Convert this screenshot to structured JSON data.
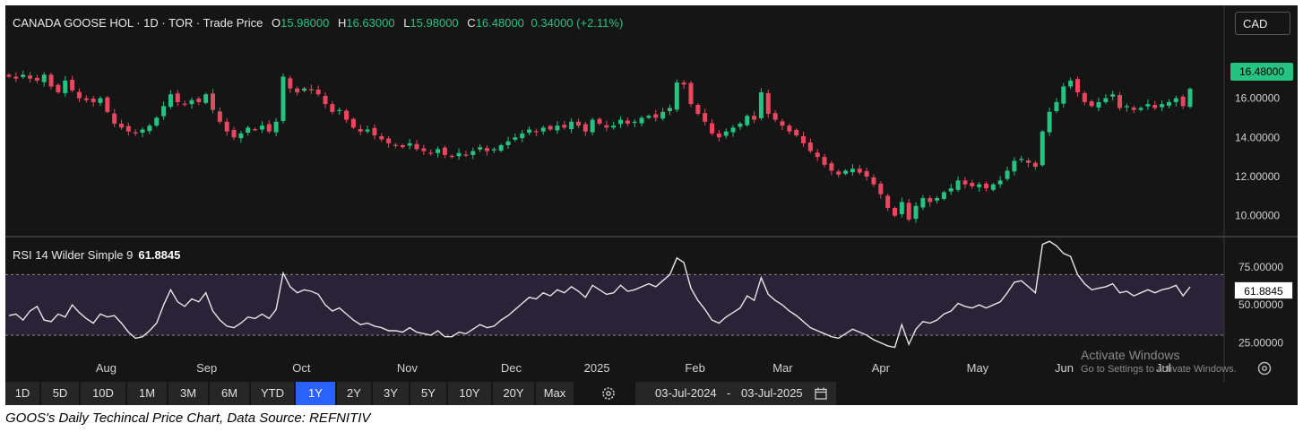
{
  "legend": {
    "name": "CANADA GOOSE HOL · 1D · TOR · Trade Price",
    "open_label": "O",
    "open": "15.98000",
    "high_label": "H",
    "high": "16.63000",
    "low_label": "L",
    "low": "15.98000",
    "close_label": "C",
    "close": "16.48000",
    "change": "0.34000 (+2.11%)"
  },
  "currency": "CAD",
  "last_price_tag": "16.48000",
  "rsi_legend": {
    "label": "RSI 14 Wilder Simple 9",
    "value": "61.8845"
  },
  "rsi_tag": "61.8845",
  "watermark": {
    "line1": "Activate Windows",
    "line2": "Go to Settings to activate Windows."
  },
  "ranges": [
    "1D",
    "5D",
    "10D",
    "1M",
    "3M",
    "6M",
    "YTD",
    "1Y",
    "2Y",
    "3Y",
    "5Y",
    "10Y",
    "20Y",
    "Max"
  ],
  "active_range": "1Y",
  "date_range": {
    "from": "03-Jul-2024",
    "sep": "-",
    "to": "03-Jul-2025"
  },
  "caption": "GOOS's Daily Techincal Price Chart, Data Source: REFNITIV",
  "colors": {
    "up": "#26c281",
    "down": "#e8475f",
    "background": "#151515",
    "rsi_line": "#e6e6e6",
    "rsi_band": "#2a2236"
  },
  "chart_data": [
    {
      "type": "candlestick",
      "title": "CANADA GOOSE HOL · 1D · TOR · Trade Price",
      "x_ticks": [
        "Aug",
        "Sep",
        "Oct",
        "Nov",
        "Dec",
        "2025",
        "Feb",
        "Mar",
        "Apr",
        "May",
        "Jun",
        "Jul"
      ],
      "y_ticks": [
        "16.00000",
        "14.00000",
        "12.00000",
        "10.00000"
      ],
      "ylim": [
        9.3,
        19.0
      ],
      "x_range": [
        "03-Jul-2024",
        "03-Jul-2025"
      ],
      "closes": [
        17.1,
        17.0,
        17.2,
        17.0,
        16.9,
        17.2,
        16.6,
        16.3,
        16.9,
        16.4,
        16.0,
        15.9,
        15.8,
        16.0,
        15.3,
        14.7,
        14.5,
        14.3,
        14.2,
        14.4,
        14.6,
        15.0,
        15.6,
        16.2,
        15.8,
        15.7,
        15.9,
        15.8,
        16.2,
        15.4,
        14.8,
        14.3,
        14.0,
        14.2,
        14.5,
        14.4,
        14.6,
        14.3,
        14.8,
        17.1,
        16.5,
        16.3,
        16.5,
        16.4,
        16.2,
        15.7,
        15.3,
        15.4,
        14.9,
        14.5,
        14.3,
        14.4,
        14.1,
        13.9,
        13.7,
        13.6,
        13.5,
        13.7,
        13.4,
        13.3,
        13.2,
        13.4,
        13.1,
        13.0,
        13.2,
        13.1,
        13.3,
        13.5,
        13.3,
        13.4,
        13.6,
        13.8,
        14.0,
        14.2,
        14.4,
        14.3,
        14.5,
        14.4,
        14.6,
        14.5,
        14.8,
        14.6,
        14.3,
        14.9,
        14.7,
        14.5,
        14.6,
        14.9,
        14.7,
        14.8,
        15.0,
        15.1,
        15.0,
        15.3,
        15.5,
        16.8,
        16.7,
        15.7,
        15.2,
        14.8,
        14.2,
        14.0,
        14.3,
        14.5,
        14.7,
        15.1,
        14.9,
        16.3,
        15.2,
        14.9,
        14.6,
        14.3,
        14.1,
        13.7,
        13.3,
        13.0,
        12.6,
        12.3,
        12.1,
        12.3,
        12.4,
        12.2,
        12.0,
        11.6,
        11.1,
        10.4,
        10.0,
        10.7,
        9.8,
        10.5,
        10.9,
        10.7,
        10.9,
        11.2,
        11.4,
        11.8,
        11.6,
        11.5,
        11.6,
        11.4,
        11.6,
        11.8,
        12.3,
        12.8,
        12.9,
        12.7,
        12.5,
        14.3,
        15.3,
        15.8,
        16.6,
        16.9,
        16.3,
        15.8,
        15.6,
        15.8,
        16.0,
        16.2,
        15.5,
        15.6,
        15.4,
        15.5,
        15.7,
        15.5,
        15.7,
        15.8,
        16.0,
        15.6,
        16.48
      ],
      "last_close": 16.48
    },
    {
      "type": "line",
      "title": "RSI 14 Wilder Simple 9",
      "y_ticks": [
        "75.00000",
        "50.00000",
        "25.00000"
      ],
      "ylim": [
        17,
        88
      ],
      "band": [
        30,
        70
      ],
      "values": [
        43,
        44,
        40,
        46,
        49,
        40,
        39,
        44,
        42,
        50,
        45,
        41,
        38,
        44,
        42,
        43,
        38,
        32,
        28,
        29,
        33,
        38,
        50,
        60,
        52,
        49,
        54,
        52,
        58,
        46,
        40,
        36,
        35,
        38,
        42,
        41,
        44,
        41,
        47,
        71,
        62,
        58,
        60,
        59,
        57,
        50,
        46,
        48,
        44,
        40,
        37,
        38,
        36,
        35,
        33,
        33,
        32,
        35,
        32,
        31,
        30,
        33,
        29,
        29,
        32,
        31,
        34,
        37,
        35,
        36,
        40,
        43,
        47,
        51,
        55,
        54,
        58,
        56,
        60,
        58,
        62,
        59,
        55,
        63,
        60,
        57,
        58,
        63,
        59,
        60,
        62,
        64,
        62,
        66,
        70,
        81,
        78,
        61,
        53,
        47,
        40,
        38,
        42,
        45,
        48,
        56,
        53,
        68,
        57,
        53,
        50,
        46,
        43,
        39,
        35,
        33,
        31,
        29,
        28,
        31,
        34,
        32,
        30,
        27,
        25,
        23,
        22,
        37,
        24,
        34,
        39,
        38,
        40,
        44,
        46,
        51,
        49,
        48,
        50,
        48,
        50,
        52,
        58,
        65,
        66,
        62,
        58,
        90,
        92,
        89,
        84,
        82,
        70,
        64,
        60,
        61,
        62,
        64,
        58,
        59,
        56,
        58,
        60,
        58,
        60,
        61,
        63,
        56,
        61.88
      ],
      "last_value": 61.8845
    }
  ]
}
